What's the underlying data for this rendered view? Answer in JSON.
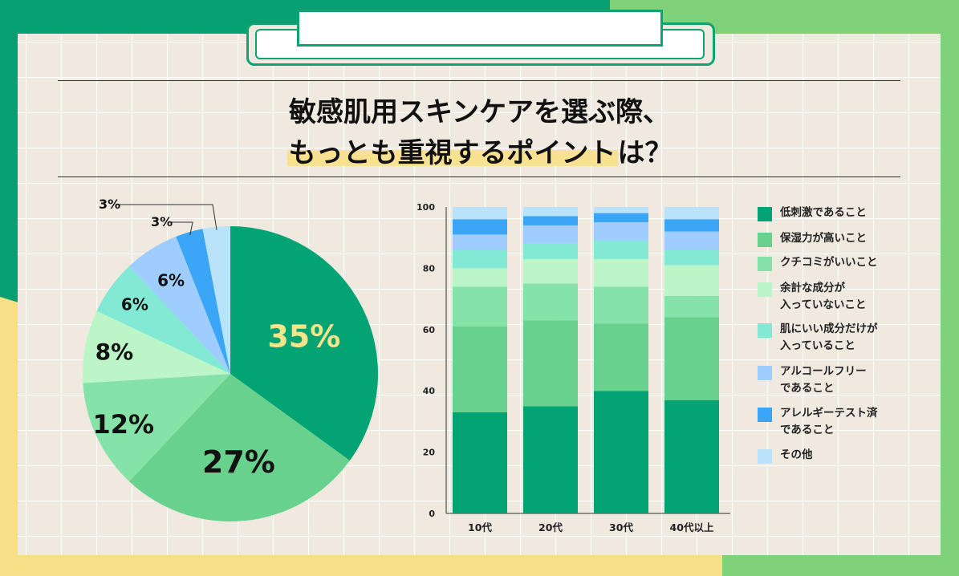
{
  "title": {
    "line1": "敏感肌用スキンケアを選ぶ際、",
    "line2_highlight": "もっとも重視するポイント",
    "line2_rest": "は？"
  },
  "colors": {
    "s1": "#04a374",
    "s2": "#67d18d",
    "s3": "#86e3a8",
    "s4": "#bdf6c6",
    "s5": "#82ead4",
    "s6": "#9fcdff",
    "s7": "#3aa6f5",
    "s8": "#b9e3fb"
  },
  "chart_data": [
    {
      "type": "pie",
      "labels": [
        "低刺激であること",
        "保湿力が高いこと",
        "クチコミがいいこと",
        "余計な成分が入っていないこと",
        "肌にいい成分だけが入っていること",
        "アルコールフリーであること",
        "アレルギーテスト済であること",
        "その他"
      ],
      "values": [
        35,
        27,
        12,
        8,
        6,
        6,
        3,
        3
      ],
      "value_labels": [
        "35%",
        "27%",
        "12%",
        "8%",
        "6%",
        "6%",
        "3%",
        "3%"
      ]
    },
    {
      "type": "bar",
      "stacked": true,
      "categories": [
        "10代",
        "20代",
        "30代",
        "40代以上"
      ],
      "ylim": [
        0,
        100
      ],
      "yticks": [
        0,
        20,
        40,
        60,
        80,
        100
      ],
      "series": [
        {
          "name": "低刺激であること",
          "values": [
            33,
            35,
            40,
            37
          ]
        },
        {
          "name": "保湿力が高いこと",
          "values": [
            28,
            28,
            22,
            27
          ]
        },
        {
          "name": "クチコミがいいこと",
          "values": [
            13,
            12,
            12,
            7
          ]
        },
        {
          "name": "余計な成分が入っていないこと",
          "values": [
            6,
            8,
            9,
            10
          ]
        },
        {
          "name": "肌にいい成分だけが入っていること",
          "values": [
            6,
            5,
            6,
            5
          ]
        },
        {
          "name": "アルコールフリーであること",
          "values": [
            5,
            6,
            6,
            6
          ]
        },
        {
          "name": "アレルギーテスト済であること",
          "values": [
            5,
            3,
            3,
            4
          ]
        },
        {
          "name": "その他",
          "values": [
            4,
            3,
            2,
            4
          ]
        }
      ]
    }
  ],
  "legend": [
    "低刺激であること",
    "保湿力が高いこと",
    "クチコミがいいこと",
    "余計な成分が\n入っていないこと",
    "肌にいい成分だけが\n入っていること",
    "アルコールフリー\nであること",
    "アレルギーテスト済\nであること",
    "その他"
  ]
}
